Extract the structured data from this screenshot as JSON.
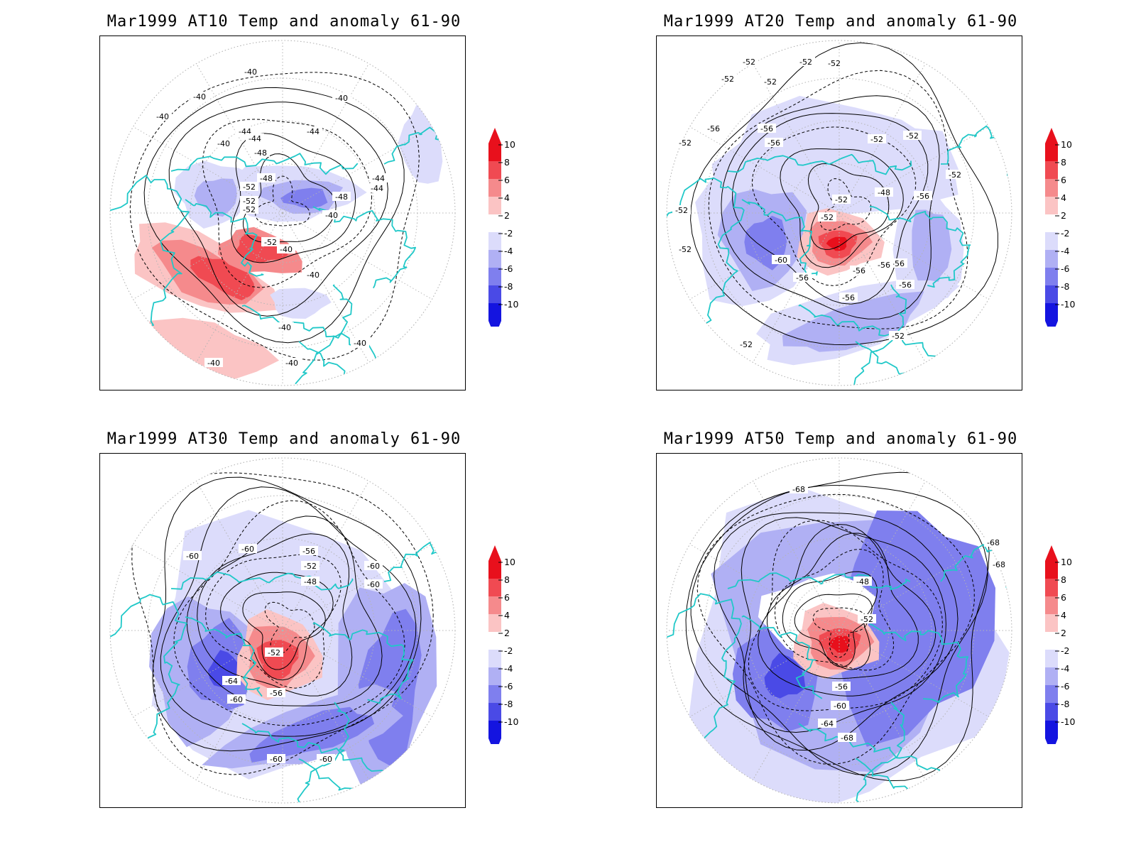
{
  "panels": [
    {
      "title": "Mar1999 AT10 Temp and anomaly 61-90",
      "contour_labels": [
        "-40",
        "-40",
        "-40",
        "-40",
        "-40",
        "-44",
        "-44",
        "-44",
        "-44",
        "-44",
        "-48",
        "-48",
        "-48",
        "-52",
        "-52",
        "-52",
        "-52",
        "-40",
        "-40",
        "-40",
        "-40",
        "-40",
        "-40",
        "-40"
      ]
    },
    {
      "title": "Mar1999 AT20 Temp and anomaly 61-90",
      "contour_labels": [
        "-52",
        "-52",
        "-52",
        "-52",
        "-52",
        "-52",
        "-56",
        "-56",
        "-52",
        "-52",
        "-52",
        "-56",
        "-52",
        "-48",
        "-52",
        "-52",
        "-56",
        "-52",
        "-60",
        "-56",
        "-56",
        "-56",
        "-56",
        "-56",
        "-56",
        "-52",
        "-52"
      ]
    },
    {
      "title": "Mar1999 AT30 Temp and anomaly 61-90",
      "contour_labels": [
        "-60",
        "-60",
        "-56",
        "-52",
        "-48",
        "-60",
        "-60",
        "-52",
        "-64",
        "-60",
        "-56",
        "-60",
        "-60"
      ]
    },
    {
      "title": "Mar1999 AT50 Temp and anomaly 61-90",
      "contour_labels": [
        "-68",
        "-68",
        "-68",
        "-48",
        "-52",
        "-56",
        "-60",
        "-64",
        "-68"
      ]
    }
  ],
  "colorbar": {
    "labels": [
      "10",
      "8",
      "6",
      "4",
      "2",
      "-2",
      "-4",
      "-6",
      "-8",
      "-10"
    ],
    "colors": [
      "#e8101c",
      "#f04a52",
      "#f58a8c",
      "#fbc4c4",
      "#ffffff",
      "#dcdcfb",
      "#b0b0f4",
      "#7f7fee",
      "#4a4ae6",
      "#1414e0"
    ]
  },
  "styles": {
    "coast": "#20c8c8",
    "contour": "#000000",
    "grid": "#b4b4b4"
  }
}
